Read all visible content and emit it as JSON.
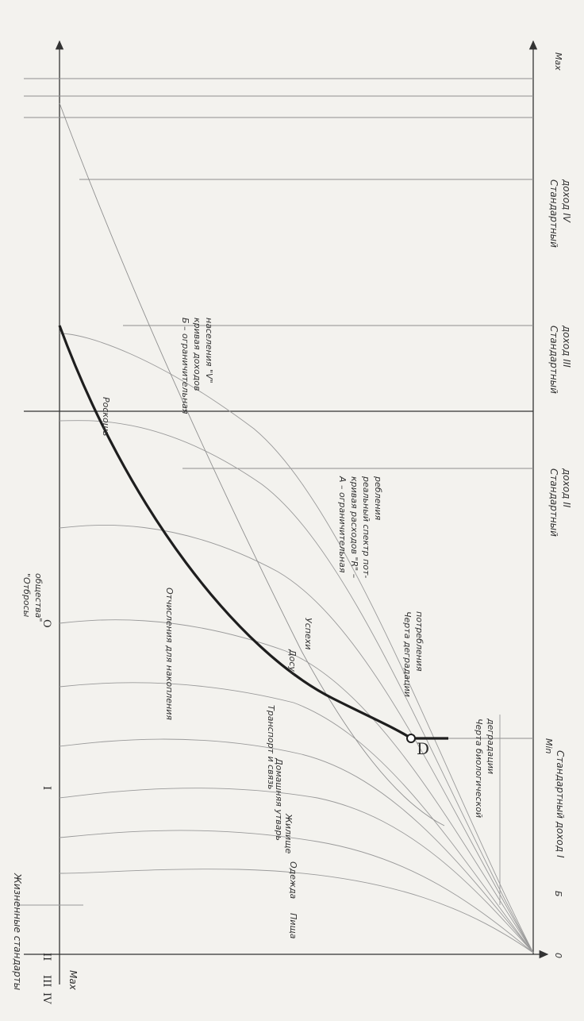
{
  "axes": {
    "y_top": "Max",
    "y_bottom": "0",
    "x_right": "Max",
    "ticks": [
      "Б",
      "Min"
    ]
  },
  "incomes": {
    "i": "Стандартный доход I",
    "ii": [
      "Стандартный",
      "доход II"
    ],
    "iii": [
      "Стандартный",
      "доход III"
    ],
    "iv": [
      "Стандартный",
      "доход IV"
    ]
  },
  "items": [
    "Пища",
    "Одежда",
    "Жилище",
    "Домашняя утварь",
    "Транспорт и связь",
    "Досуг",
    "Успехи",
    "Отчисления для накопления",
    "Роскошь"
  ],
  "curve_a": [
    "А – ограничительная",
    "кривая расходов \"R\" –",
    "реальный спектр пот-",
    "ребления"
  ],
  "curve_b": [
    "Б – ограничительная",
    "кривая доходов",
    "населения \"V\""
  ],
  "point_label": "D",
  "lines": {
    "degradation": [
      "Черта деградации",
      "потребления"
    ],
    "bio": [
      "Черта биологической",
      "деградации"
    ]
  },
  "levels": [
    "IV",
    "III",
    "II",
    "I",
    "O"
  ],
  "outcast": [
    "\"Отбросы",
    "общества\""
  ],
  "side_label": "Жизненные стандарты"
}
